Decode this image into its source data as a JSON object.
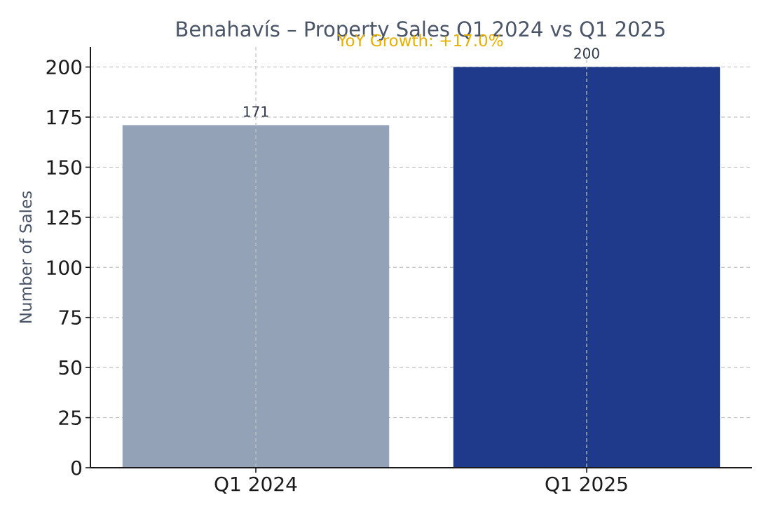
{
  "chart_data": {
    "type": "bar",
    "title": "Benahavís – Property Sales Q1 2024 vs Q1 2025",
    "subtitle": "YoY Growth: +17.0%",
    "xlabel": "",
    "ylabel": "Number of Sales",
    "categories": [
      "Q1 2024",
      "Q1 2025"
    ],
    "values": [
      171,
      200
    ],
    "data_labels": [
      "171",
      "200"
    ],
    "bar_colors": [
      "#93a2b6",
      "#1f3a8a"
    ],
    "ylim": [
      0,
      210
    ],
    "yticks": [
      0,
      25,
      50,
      75,
      100,
      125,
      150,
      175,
      200
    ],
    "ytick_labels": [
      "0",
      "25",
      "50",
      "75",
      "100",
      "125",
      "150",
      "175",
      "200"
    ],
    "grid": true,
    "colors": {
      "title": "#4a5568",
      "subtitle": "#e6b000",
      "ylabel": "#4a5568",
      "data_label": "#2d3748",
      "grid": "#c2c2c2",
      "axis": "#1a1a1a"
    }
  }
}
